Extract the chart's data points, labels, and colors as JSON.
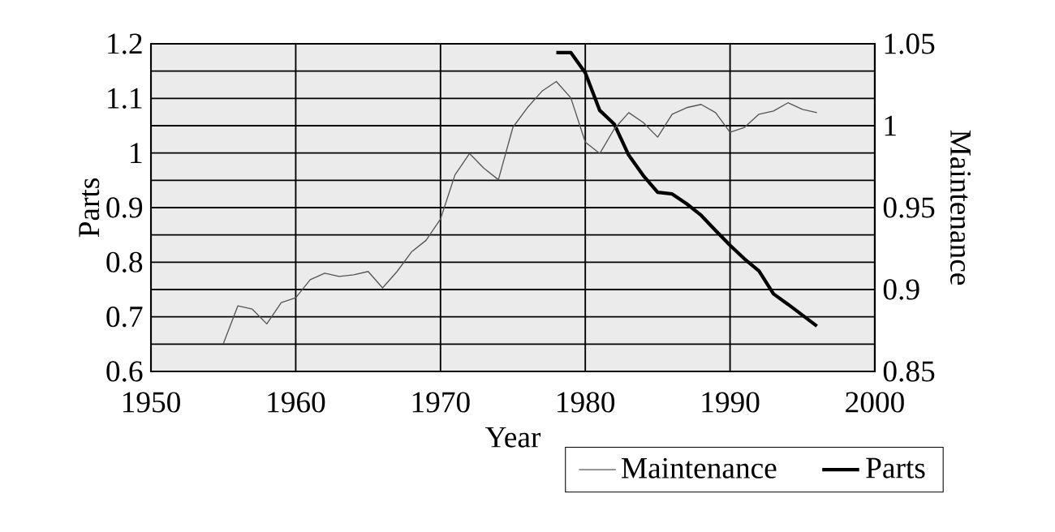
{
  "chart_data": {
    "type": "line",
    "xlabel": "Year",
    "ylabel": "Parts",
    "y2label": "Maintenance",
    "xlim": [
      1950,
      2000
    ],
    "xticks": [
      1950,
      1960,
      1970,
      1980,
      1990,
      2000
    ],
    "ylim": [
      0.6,
      1.2
    ],
    "yticks": [
      0.6,
      {
        "value": 0.65,
        "label": null
      },
      0.7,
      {
        "value": 0.75,
        "label": null
      },
      0.8,
      {
        "value": 0.85,
        "label": null
      },
      0.9,
      {
        "value": 0.95,
        "label": null
      },
      1,
      {
        "value": 1.05,
        "label": null
      },
      1.1,
      {
        "value": 1.15,
        "label": null
      },
      1.2
    ],
    "y2lim": [
      0.85,
      1.05
    ],
    "y2ticks": [
      0.85,
      0.9,
      0.95,
      1,
      1.05
    ],
    "grid": true,
    "legend": "bottom right",
    "marker": "none",
    "series": [
      {
        "name": "Maintenance",
        "axis": "y2",
        "color": "#555555",
        "x": [
          1955,
          1956,
          1957,
          1958,
          1959,
          1960,
          1961,
          1962,
          1963,
          1964,
          1965,
          1966,
          1967,
          1968,
          1969,
          1970,
          1971,
          1972,
          1973,
          1974,
          1975,
          1976,
          1977,
          1978,
          1979,
          1980,
          1981,
          1982,
          1983,
          1984,
          1985,
          1986,
          1987,
          1988,
          1989,
          1990,
          1991,
          1992,
          1993,
          1994,
          1995,
          1996
        ],
        "values": [
          0.867,
          0.89,
          0.888,
          0.879,
          0.892,
          0.895,
          0.906,
          0.91,
          0.908,
          0.909,
          0.911,
          0.901,
          0.911,
          0.923,
          0.93,
          0.943,
          0.97,
          0.983,
          0.974,
          0.967,
          0.999,
          1.011,
          1.021,
          1.027,
          1.017,
          0.99,
          0.983,
          0.998,
          1.008,
          1.002,
          0.993,
          1.007,
          1.011,
          1.013,
          1.008,
          0.996,
          0.999,
          1.007,
          1.009,
          1.014,
          1.01,
          1.008
        ]
      },
      {
        "name": "Parts",
        "color": "#000000",
        "x": [
          1978,
          1979,
          1980,
          1981,
          1982,
          1983,
          1984,
          1985,
          1986,
          1987,
          1988,
          1989,
          1990,
          1991,
          1992,
          1993,
          1994,
          1995,
          1996
        ],
        "values": [
          1.184,
          1.184,
          1.147,
          1.078,
          1.053,
          0.996,
          0.959,
          0.928,
          0.925,
          0.907,
          0.886,
          0.858,
          0.831,
          0.806,
          0.784,
          0.742,
          0.723,
          0.703,
          0.683
        ]
      }
    ]
  }
}
